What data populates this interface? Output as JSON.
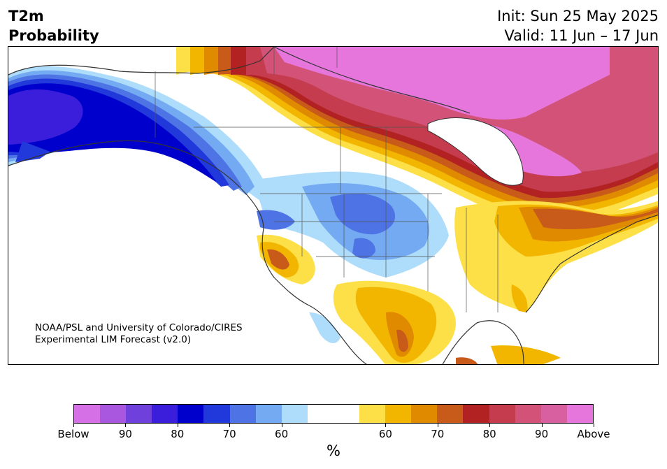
{
  "header": {
    "title_line1": "T2m",
    "title_line2": "Probability",
    "init": "Init: Sun 25 May 2025",
    "valid": "Valid: 11 Jun – 17 Jun"
  },
  "map": {
    "region": "North America",
    "credit_line1": "NOAA/PSL and University of Colorado/CIRES",
    "credit_line2": "Experimental LIM Forecast (v2.0)"
  },
  "colorbar": {
    "unit": "%",
    "colors": [
      "#d670e6",
      "#a957df",
      "#7040dc",
      "#3b1edb",
      "#0000cc",
      "#2138da",
      "#4e73e5",
      "#74aaf2",
      "#aedcfb",
      "#ffffff",
      "#ffffff",
      "#fde047",
      "#f2b600",
      "#e08a00",
      "#c85a1a",
      "#b22222",
      "#c43c4e",
      "#d25377",
      "#d85fa0",
      "#e676dc"
    ],
    "tick_labels": [
      "Below",
      "90",
      "80",
      "70",
      "60",
      "60",
      "70",
      "80",
      "90",
      "Above"
    ]
  },
  "colors": {
    "above_strong": "#e676dc",
    "above_high": "#c43c4e",
    "above_mid": "#c85a1a",
    "above_low": "#fde047",
    "below_strong": "#3b1edb",
    "below_mid": "#4e73e5",
    "below_low": "#aedcfb"
  }
}
